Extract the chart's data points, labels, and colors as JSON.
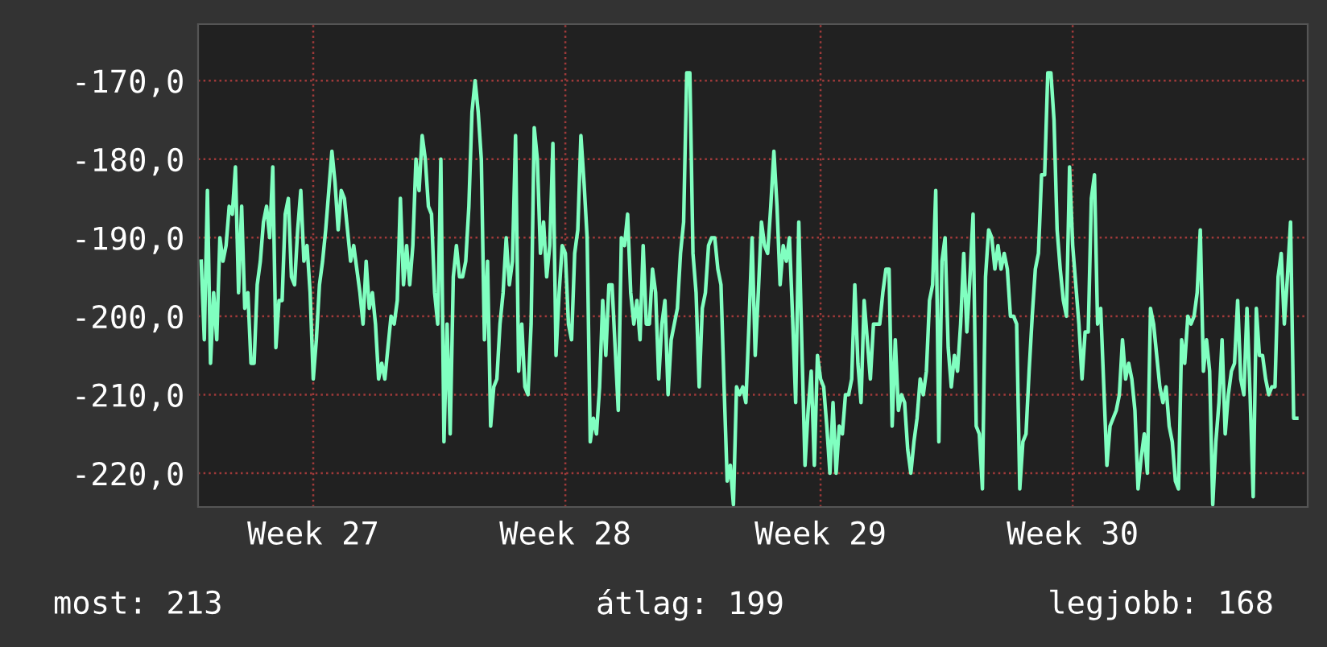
{
  "chart_data": {
    "type": "line",
    "categories": [
      null,
      null,
      null,
      null,
      null,
      null,
      null,
      null,
      null,
      null,
      null,
      null,
      null,
      null,
      null,
      null,
      null,
      null,
      null,
      null,
      null,
      null,
      null,
      null,
      null,
      null,
      null,
      null,
      null,
      null,
      null,
      null,
      null,
      null,
      null,
      null,
      "Week 27",
      null,
      null,
      null,
      null,
      null,
      null,
      null,
      null,
      null,
      null,
      null,
      null,
      null,
      null,
      null,
      null,
      null,
      null,
      null,
      null,
      null,
      null,
      null,
      null,
      null,
      null,
      null,
      null,
      null,
      null,
      null,
      null,
      null,
      null,
      null,
      null,
      null,
      null,
      null,
      null,
      null,
      null,
      null,
      null,
      null,
      null,
      null,
      null,
      null,
      null,
      null,
      null,
      null,
      null,
      null,
      null,
      null,
      null,
      null,
      null,
      null,
      null,
      null,
      null,
      null,
      null,
      null,
      null,
      null,
      null,
      null,
      null,
      null,
      null,
      null,
      null,
      null,
      null,
      null,
      null,
      "Week 28",
      null,
      null,
      null,
      null,
      null,
      null,
      null,
      null,
      null,
      null,
      null,
      null,
      null,
      null,
      null,
      null,
      null,
      null,
      null,
      null,
      null,
      null,
      null,
      null,
      null,
      null,
      null,
      null,
      null,
      null,
      null,
      null,
      null,
      null,
      null,
      null,
      null,
      null,
      null,
      null,
      null,
      null,
      null,
      null,
      null,
      null,
      null,
      null,
      null,
      null,
      null,
      null,
      null,
      null,
      null,
      null,
      null,
      null,
      null,
      null,
      null,
      null,
      null,
      null,
      null,
      null,
      null,
      null,
      null,
      null,
      null,
      null,
      null,
      null,
      null,
      null,
      null,
      null,
      null,
      null,
      null,
      "Week 29",
      null,
      null,
      null,
      null,
      null,
      null,
      null,
      null,
      null,
      null,
      null,
      null,
      null,
      null,
      null,
      null,
      null,
      null,
      null,
      null,
      null,
      null,
      null,
      null,
      null,
      null,
      null,
      null,
      null,
      null,
      null,
      null,
      null,
      null,
      null,
      null,
      null,
      null,
      null,
      null,
      null,
      null,
      null,
      null,
      null,
      null,
      null,
      null,
      null,
      null,
      null,
      null,
      null,
      null,
      null,
      null,
      null,
      null,
      null,
      null,
      null,
      null,
      null,
      null,
      null,
      null,
      null,
      null,
      null,
      null,
      null,
      null,
      null,
      null,
      null,
      null,
      null,
      null,
      null,
      null,
      "Week 30",
      null,
      null,
      null,
      null,
      null,
      null,
      null,
      null,
      null,
      null,
      null,
      null,
      null,
      null,
      null,
      null,
      null,
      null,
      null,
      null,
      null,
      null,
      null,
      null,
      null,
      null,
      null,
      null,
      null,
      null,
      null,
      null,
      null,
      null,
      null,
      null,
      null,
      null,
      null,
      null,
      null,
      null,
      null,
      null,
      null,
      null,
      null,
      null,
      null,
      null,
      null,
      null,
      null,
      null,
      null,
      null,
      null,
      null,
      null,
      null,
      null,
      null,
      null,
      null,
      null,
      null,
      null,
      null,
      null,
      null,
      null,
      null
    ],
    "series": [
      {
        "color": "#80ffc0",
        "values": [
          -193,
          -203,
          -184,
          -206,
          -197,
          -203,
          -190,
          -193,
          -191,
          -186,
          -187,
          -181,
          -197,
          -186,
          -199,
          -197,
          -206,
          -206,
          -196,
          -193,
          -188,
          -186,
          -190,
          -181,
          -204,
          -198,
          -198,
          -187,
          -185,
          -195,
          -196,
          -189,
          -184,
          -193,
          -191,
          -197,
          -208,
          -203,
          -196,
          -193,
          -189,
          -184,
          -179,
          -183,
          -189,
          -184,
          -185,
          -189,
          -193,
          -191,
          -194,
          -197,
          -201,
          -193,
          -199,
          -197,
          -201,
          -208,
          -206,
          -208,
          -204,
          -200,
          -201,
          -198,
          -185,
          -196,
          -191,
          -196,
          -191,
          -180,
          -184,
          -177,
          -180,
          -186,
          -187,
          -197,
          -201,
          -180,
          -216,
          -201,
          -215,
          -195,
          -191,
          -195,
          -195,
          -193,
          -186,
          -174,
          -170,
          -174,
          -180,
          -203,
          -193,
          -214,
          -209,
          -208,
          -201,
          -197,
          -190,
          -196,
          -193,
          -177,
          -207,
          -201,
          -209,
          -210,
          -201,
          -176,
          -180,
          -192,
          -188,
          -195,
          -191,
          -178,
          -205,
          -197,
          -191,
          -192,
          -201,
          -203,
          -192,
          -189,
          -177,
          -183,
          -190,
          -216,
          -213,
          -215,
          -209,
          -198,
          -205,
          -196,
          -196,
          -204,
          -212,
          -190,
          -191,
          -187,
          -197,
          -201,
          -198,
          -203,
          -191,
          -201,
          -201,
          -194,
          -197,
          -208,
          -201,
          -198,
          -210,
          -203,
          -201,
          -199,
          -192,
          -188,
          -169,
          -169,
          -192,
          -197,
          -209,
          -199,
          -197,
          -191,
          -190,
          -190,
          -194,
          -196,
          -209,
          -221,
          -219,
          -224,
          -209,
          -210,
          -209,
          -211,
          -201,
          -190,
          -205,
          -197,
          -188,
          -191,
          -192,
          -186,
          -179,
          -186,
          -196,
          -191,
          -193,
          -190,
          -200,
          -211,
          -188,
          -204,
          -219,
          -212,
          -207,
          -219,
          -205,
          -208,
          -209,
          -214,
          -220,
          -211,
          -220,
          -214,
          -215,
          -210,
          -210,
          -208,
          -196,
          -206,
          -211,
          -198,
          -203,
          -208,
          -201,
          -201,
          -201,
          -197,
          -194,
          -194,
          -214,
          -203,
          -212,
          -210,
          -211,
          -217,
          -220,
          -216,
          -213,
          -208,
          -210,
          -207,
          -198,
          -196,
          -184,
          -216,
          -193,
          -190,
          -204,
          -209,
          -205,
          -207,
          -201,
          -192,
          -202,
          -195,
          -187,
          -214,
          -215,
          -222,
          -195,
          -189,
          -190,
          -194,
          -191,
          -194,
          -192,
          -194,
          -200,
          -200,
          -201,
          -222,
          -216,
          -215,
          -207,
          -200,
          -194,
          -192,
          -182,
          -182,
          -169,
          -169,
          -175,
          -189,
          -194,
          -198,
          -200,
          -181,
          -191,
          -196,
          -201,
          -208,
          -202,
          -202,
          -185,
          -182,
          -201,
          -199,
          -209,
          -219,
          -214,
          -213,
          -212,
          -210,
          -203,
          -208,
          -206,
          -208,
          -212,
          -222,
          -218,
          -215,
          -220,
          -199,
          -201,
          -205,
          -209,
          -211,
          -209,
          -214,
          -216,
          -221,
          -222,
          -203,
          -206,
          -200,
          -201,
          -200,
          -197,
          -189,
          -207,
          -203,
          -207,
          -224,
          -216,
          -211,
          -203,
          -215,
          -210,
          -207,
          -206,
          -198,
          -208,
          -210,
          -199,
          -210,
          -223,
          -199,
          -205,
          -205,
          -208,
          -210,
          -209,
          -209,
          -195,
          -192,
          -201,
          -195,
          -188,
          -213,
          -213
        ]
      }
    ],
    "ylim": [
      -224.3,
      -162.8
    ],
    "yticks": [
      {
        "value": -220,
        "label": "-220,0"
      },
      {
        "value": -210,
        "label": "-210,0"
      },
      {
        "value": -200,
        "label": "-200,0"
      },
      {
        "value": -190,
        "label": "-190,0"
      },
      {
        "value": -180,
        "label": "-180,0"
      },
      {
        "value": -170,
        "label": "-170,0"
      }
    ],
    "grid": true,
    "annotations": [
      "most: 213",
      "átlag: 199",
      "legjobb: 168"
    ]
  }
}
